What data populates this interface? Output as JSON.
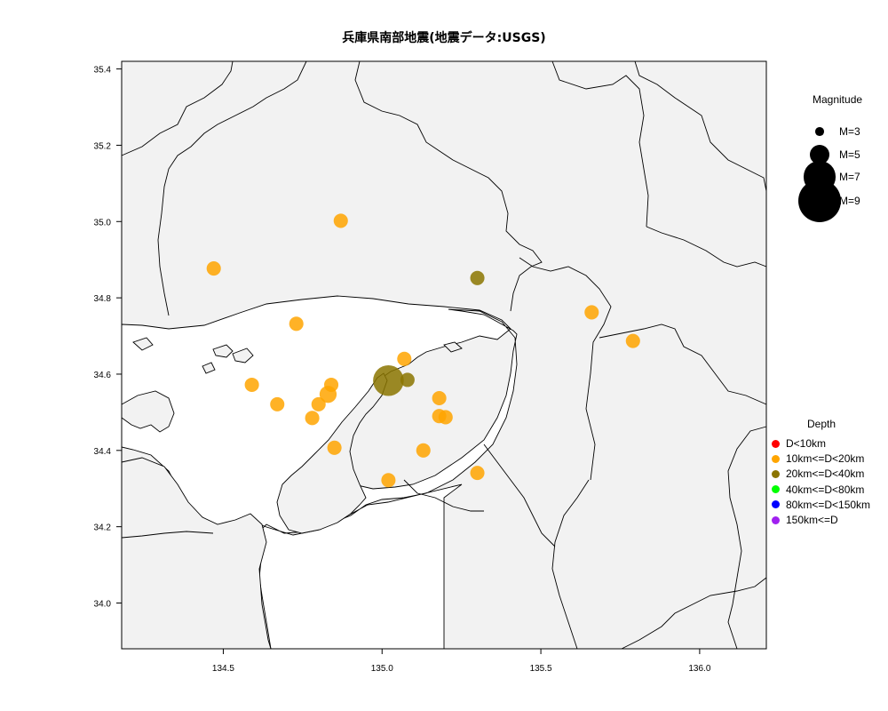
{
  "title": "兵庫県南部地震(地震データ:USGS)",
  "axes": {
    "x_ticks": [
      "134.5",
      "135.0",
      "135.5",
      "136.0"
    ],
    "y_ticks": [
      "34.0",
      "34.2",
      "34.4",
      "34.6",
      "34.8",
      "35.0",
      "35.2",
      "35.4"
    ]
  },
  "magnitude_legend": {
    "title": "Magnitude",
    "items": [
      {
        "label": "M=3",
        "m": 3
      },
      {
        "label": "M=5",
        "m": 5
      },
      {
        "label": "M=7",
        "m": 7
      },
      {
        "label": "M=9",
        "m": 9
      }
    ]
  },
  "depth_legend": {
    "title": "Depth",
    "items": [
      {
        "label": "D<10km",
        "color": "#ff0000"
      },
      {
        "label": "10km<=D<20km",
        "color": "#ffa500"
      },
      {
        "label": "20km<=D<40km",
        "color": "#8b7500"
      },
      {
        "label": "40km<=D<80km",
        "color": "#00ff00"
      },
      {
        "label": "80km<=D<150km",
        "color": "#0000ff"
      },
      {
        "label": "150km<=D",
        "color": "#a020f0"
      }
    ]
  },
  "chart_data": {
    "type": "scatter",
    "title": "兵庫県南部地震(地震データ:USGS)",
    "xlim": [
      134.18,
      136.21
    ],
    "ylim": [
      33.88,
      35.42
    ],
    "points": [
      {
        "lon": 134.47,
        "lat": 34.877,
        "depth_class": "10-20",
        "m": 4
      },
      {
        "lon": 134.87,
        "lat": 35.002,
        "depth_class": "10-20",
        "m": 4
      },
      {
        "lon": 135.3,
        "lat": 34.852,
        "depth_class": "20-40",
        "m": 4
      },
      {
        "lon": 134.73,
        "lat": 34.732,
        "depth_class": "10-20",
        "m": 4
      },
      {
        "lon": 135.66,
        "lat": 34.762,
        "depth_class": "10-20",
        "m": 4
      },
      {
        "lon": 135.79,
        "lat": 34.687,
        "depth_class": "10-20",
        "m": 4
      },
      {
        "lon": 134.59,
        "lat": 34.572,
        "depth_class": "10-20",
        "m": 4
      },
      {
        "lon": 134.67,
        "lat": 34.521,
        "depth_class": "10-20",
        "m": 4
      },
      {
        "lon": 134.84,
        "lat": 34.572,
        "depth_class": "10-20",
        "m": 4
      },
      {
        "lon": 134.83,
        "lat": 34.547,
        "depth_class": "10-20",
        "m": 4.5
      },
      {
        "lon": 134.8,
        "lat": 34.521,
        "depth_class": "10-20",
        "m": 4
      },
      {
        "lon": 134.78,
        "lat": 34.485,
        "depth_class": "10-20",
        "m": 4
      },
      {
        "lon": 134.85,
        "lat": 34.407,
        "depth_class": "10-20",
        "m": 4
      },
      {
        "lon": 135.07,
        "lat": 34.64,
        "depth_class": "10-20",
        "m": 4
      },
      {
        "lon": 135.02,
        "lat": 34.583,
        "depth_class": "20-40",
        "m": 6.9
      },
      {
        "lon": 135.08,
        "lat": 34.585,
        "depth_class": "20-40",
        "m": 4
      },
      {
        "lon": 135.18,
        "lat": 34.537,
        "depth_class": "10-20",
        "m": 4
      },
      {
        "lon": 135.18,
        "lat": 34.49,
        "depth_class": "10-20",
        "m": 4
      },
      {
        "lon": 135.2,
        "lat": 34.487,
        "depth_class": "10-20",
        "m": 4
      },
      {
        "lon": 135.13,
        "lat": 34.4,
        "depth_class": "10-20",
        "m": 4
      },
      {
        "lon": 135.3,
        "lat": 34.341,
        "depth_class": "10-20",
        "m": 4
      },
      {
        "lon": 135.02,
        "lat": 34.322,
        "depth_class": "10-20",
        "m": 4
      }
    ]
  }
}
